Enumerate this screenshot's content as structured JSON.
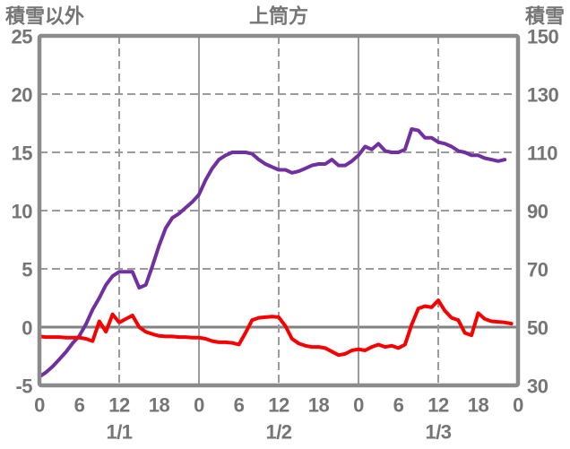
{
  "header": {
    "left_axis_title": "積雪以外",
    "chart_title": "上筒方",
    "right_axis_title": "積雪"
  },
  "chart_data": {
    "type": "line",
    "title": "上筒方",
    "left_axis": {
      "label": "積雪以外",
      "min": -5,
      "max": 25,
      "ticks": [
        25,
        20,
        15,
        10,
        5,
        0,
        -5
      ],
      "zero_line": true
    },
    "right_axis": {
      "label": "積雪",
      "min": 30,
      "max": 150,
      "ticks": [
        150,
        130,
        110,
        90,
        70,
        50,
        30
      ]
    },
    "x_axis": {
      "hours_total": 72,
      "hour_tick_step": 6,
      "hour_labels": [
        "0",
        "6",
        "12",
        "18",
        "0",
        "6",
        "12",
        "18",
        "0",
        "6",
        "12",
        "18",
        "0"
      ],
      "date_labels": [
        "1/1",
        "1/2",
        "1/3"
      ],
      "solid_grid_hours": [
        24,
        48
      ],
      "dashed_grid_hours": [
        12,
        36,
        60
      ]
    },
    "grid": {
      "horizontal_dashed_at_left_values": [
        20,
        15,
        10,
        5
      ],
      "frame_color": "#8B8B8B",
      "grid_color": "#9B9B9B",
      "zero_line_color": "#828282",
      "text_color": "#757575"
    },
    "series": [
      {
        "name": "積雪",
        "axis": "right",
        "color": "#7030A0",
        "x_start_hour": 0,
        "x_step_hours": 1,
        "values": [
          33,
          34.5,
          36.5,
          39,
          41.5,
          44.5,
          47,
          51,
          56,
          60,
          64.5,
          67.5,
          69,
          69,
          69,
          63.5,
          64.5,
          71,
          78,
          84,
          87.5,
          89,
          91,
          93,
          95.5,
          100.5,
          104.5,
          107.5,
          109,
          110,
          110,
          110,
          109.5,
          107.5,
          106,
          105,
          104,
          104,
          103,
          103.5,
          104.5,
          105.5,
          106,
          106,
          107.5,
          105.5,
          105.5,
          107,
          109,
          112,
          111,
          113,
          110.5,
          110,
          110,
          111,
          118,
          117.5,
          115,
          115,
          113.5,
          113,
          112,
          110.5,
          110,
          109,
          109,
          108,
          107.5,
          107,
          107.5
        ]
      },
      {
        "name": "積雪以外",
        "axis": "left",
        "color": "#F80000",
        "x_start_hour": 0,
        "x_step_hours": 1,
        "values": [
          -0.8,
          -0.85,
          -0.85,
          -0.85,
          -0.9,
          -0.9,
          -0.9,
          -1.0,
          -1.2,
          0.5,
          -0.4,
          1.1,
          0.4,
          0.7,
          1.0,
          0.0,
          -0.4,
          -0.6,
          -0.75,
          -0.8,
          -0.8,
          -0.85,
          -0.85,
          -0.9,
          -0.9,
          -1.0,
          -1.2,
          -1.3,
          -1.3,
          -1.35,
          -1.5,
          -0.5,
          0.6,
          0.8,
          0.85,
          0.9,
          0.85,
          0.1,
          -1.0,
          -1.4,
          -1.6,
          -1.7,
          -1.7,
          -1.8,
          -2.1,
          -2.4,
          -2.3,
          -2.0,
          -1.9,
          -2.0,
          -1.7,
          -1.5,
          -1.7,
          -1.6,
          -1.8,
          -1.5,
          0.2,
          1.6,
          1.8,
          1.7,
          2.3,
          1.4,
          0.8,
          0.6,
          -0.5,
          -0.7,
          1.2,
          0.7,
          0.5,
          0.45,
          0.4,
          0.3
        ]
      }
    ]
  }
}
